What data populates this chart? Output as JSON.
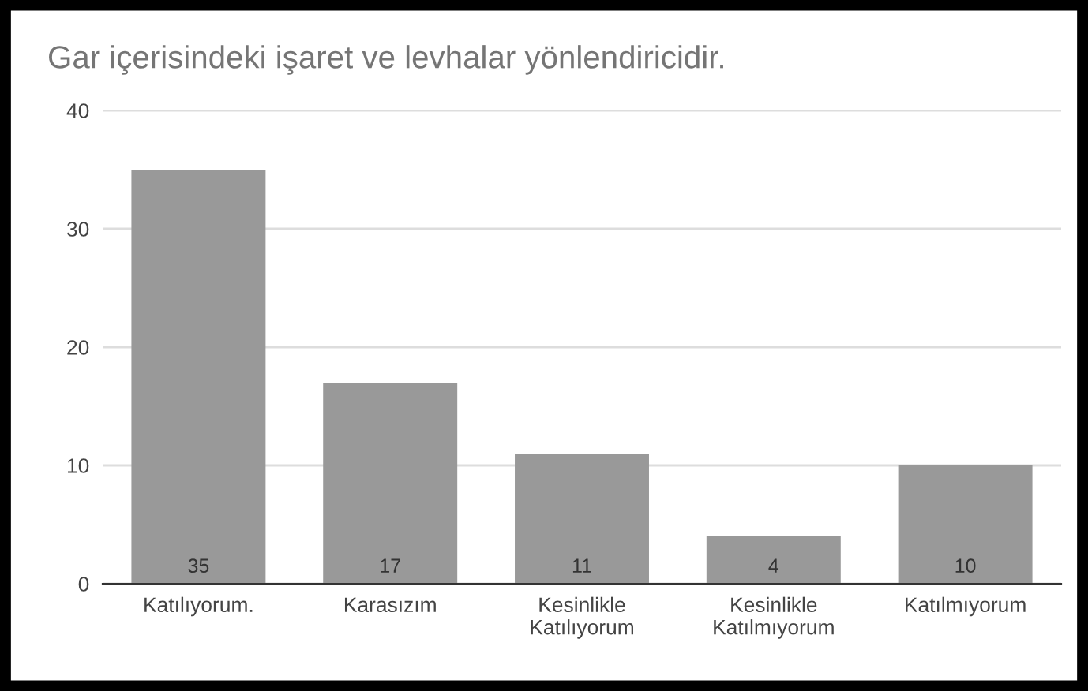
{
  "chart_data": {
    "type": "bar",
    "title": "Gar içerisindeki işaret ve levhalar yönlendiricidir.",
    "categories": [
      "Katılıyorum.",
      "Karasızım",
      "Kesinlikle\nKatılıyorum",
      "Kesinlikle\nKatılmıyorum",
      "Katılmıyorum"
    ],
    "values": [
      35,
      17,
      11,
      4,
      10
    ],
    "color": "#999999",
    "ylim": [
      0,
      40
    ],
    "yticks": [
      0,
      10,
      20,
      30,
      40
    ],
    "grid": "y",
    "data_labels": true,
    "legend": false
  }
}
